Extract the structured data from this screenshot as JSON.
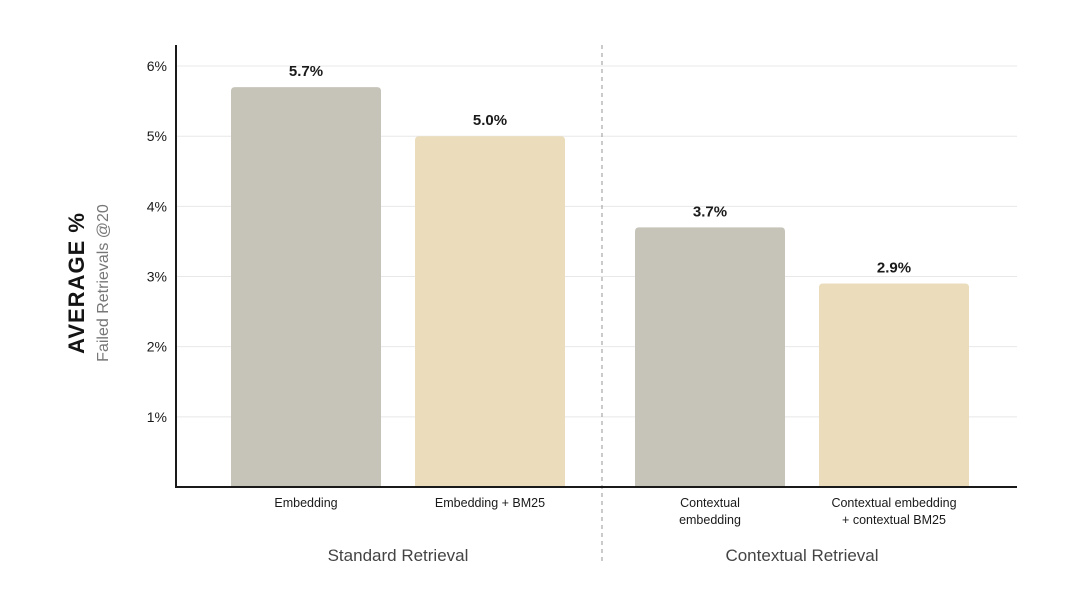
{
  "chart_data": {
    "type": "bar",
    "ylabel": "AVERAGE %",
    "ylabel_sub": "Failed Retrievals @20",
    "ylim": [
      0,
      6.3
    ],
    "yticks": [
      {
        "value": 1,
        "label": "1%"
      },
      {
        "value": 2,
        "label": "2%"
      },
      {
        "value": 3,
        "label": "3%"
      },
      {
        "value": 4,
        "label": "4%"
      },
      {
        "value": 5,
        "label": "5%"
      },
      {
        "value": 6,
        "label": "6%"
      }
    ],
    "grid": true,
    "groups": [
      {
        "name": "Standard Retrieval",
        "categories": [
          0,
          1
        ]
      },
      {
        "name": "Contextual Retrieval",
        "categories": [
          2,
          3
        ]
      }
    ],
    "categories": [
      [
        "Embedding"
      ],
      [
        "Embedding + BM25"
      ],
      [
        "Contextual",
        "embedding"
      ],
      [
        "Contextual embedding",
        "+ contextual BM25"
      ]
    ],
    "values": [
      5.7,
      5.0,
      3.7,
      2.9
    ],
    "value_labels": [
      "5.7%",
      "5.0%",
      "3.7%",
      "2.9%"
    ],
    "colors": {
      "embedding": "#c6c4b9",
      "bm25": "#ebdcbc",
      "axis": "#1a1a1a",
      "grid": "#e8e8e8",
      "divider": "#a8a8a8"
    },
    "bar_colors": [
      "embedding",
      "bm25",
      "embedding",
      "bm25"
    ]
  }
}
